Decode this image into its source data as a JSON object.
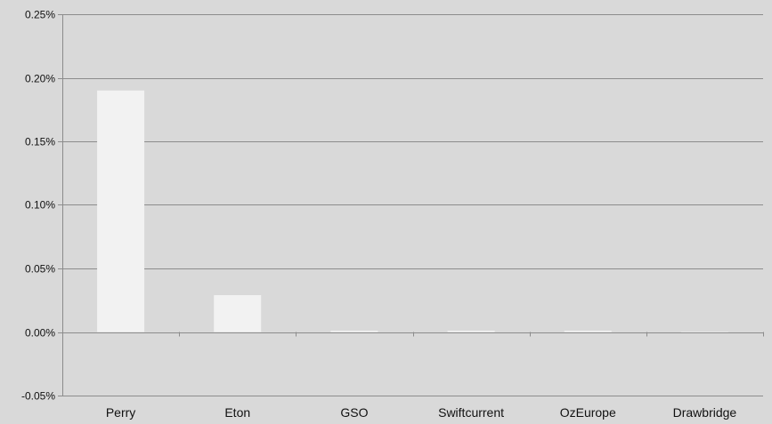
{
  "chart_data": {
    "type": "bar",
    "title": "",
    "xlabel": "",
    "ylabel": "",
    "categories": [
      "Perry",
      "Eton",
      "GSO",
      "Swiftcurrent",
      "OzEurope",
      "Drawbridge"
    ],
    "values": [
      0.19,
      0.029,
      0.001,
      0.0,
      0.0,
      -0.0005
    ],
    "value_unit": "%",
    "ylim": [
      -0.05,
      0.25
    ],
    "yticks": [
      -0.05,
      0.0,
      0.05,
      0.1,
      0.15,
      0.2,
      0.25
    ],
    "ytick_labels": [
      "-0.05%",
      "0.00%",
      "0.05%",
      "0.10%",
      "0.15%",
      "0.20%",
      "0.25%"
    ],
    "grid": true,
    "legend": "none",
    "colors": {
      "background": "#d9d9d9",
      "bar": "#f2f2f2",
      "gridline": "#8c8c8c",
      "axis": "#8c8c8c",
      "text": "#111111"
    }
  }
}
